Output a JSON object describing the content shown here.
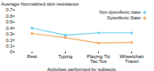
{
  "chart_data": {
    "type": "line",
    "categories": [
      "Rest",
      "Typing",
      "Playing Tic Tac Toe",
      "Wheelchair Travel"
    ],
    "series": [
      {
        "name": "Non dysreflexic state",
        "color": "#5bc8ea",
        "values": [
          0.4,
          0.28,
          0.32,
          0.32
        ]
      },
      {
        "name": "Dysreflexic State",
        "color": "#f4a050",
        "values": [
          0.31,
          0.24,
          0.15,
          0.16
        ]
      }
    ],
    "xlabel": "Activities performed by subjects",
    "ylabel": "Average Normalized skin resistance",
    "ylim": [
      0,
      0.7
    ],
    "yticks": [
      0,
      0.1,
      0.2,
      0.3,
      0.4,
      0.5,
      0.6,
      0.7
    ],
    "marker": "circle",
    "legend": "right",
    "grid": false
  }
}
